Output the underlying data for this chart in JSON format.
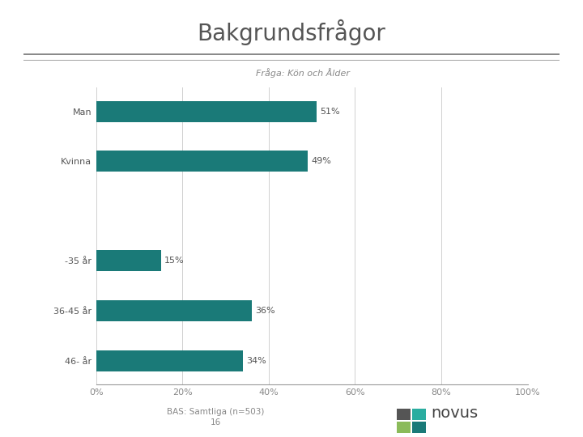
{
  "title": "Bakgrundsfrågor",
  "subtitle": "Fråga: Kön och Ålder",
  "categories": [
    "Man",
    "Kvinna",
    "",
    "-35 år",
    "36-45 år",
    "46- år"
  ],
  "values": [
    51,
    49,
    0,
    15,
    36,
    34
  ],
  "bar_color": "#1a7a78",
  "label_values": [
    "51%",
    "49%",
    "",
    "15%",
    "36%",
    "34%"
  ],
  "x_ticks": [
    0,
    20,
    40,
    60,
    80,
    100
  ],
  "x_tick_labels": [
    "0%",
    "20%",
    "40%",
    "60%",
    "80%",
    "100%"
  ],
  "xlim": [
    0,
    100
  ],
  "bas_text": "BAS: Samtliga (n=503)",
  "page_num": "16",
  "background_color": "#ffffff",
  "title_fontsize": 20,
  "subtitle_fontsize": 8,
  "bar_label_fontsize": 8,
  "axis_label_fontsize": 8,
  "category_fontsize": 8,
  "bas_fontsize": 7.5,
  "novus_colors": [
    "#555555",
    "#2a9d8f",
    "#8bc34a",
    "#1a7a78"
  ]
}
